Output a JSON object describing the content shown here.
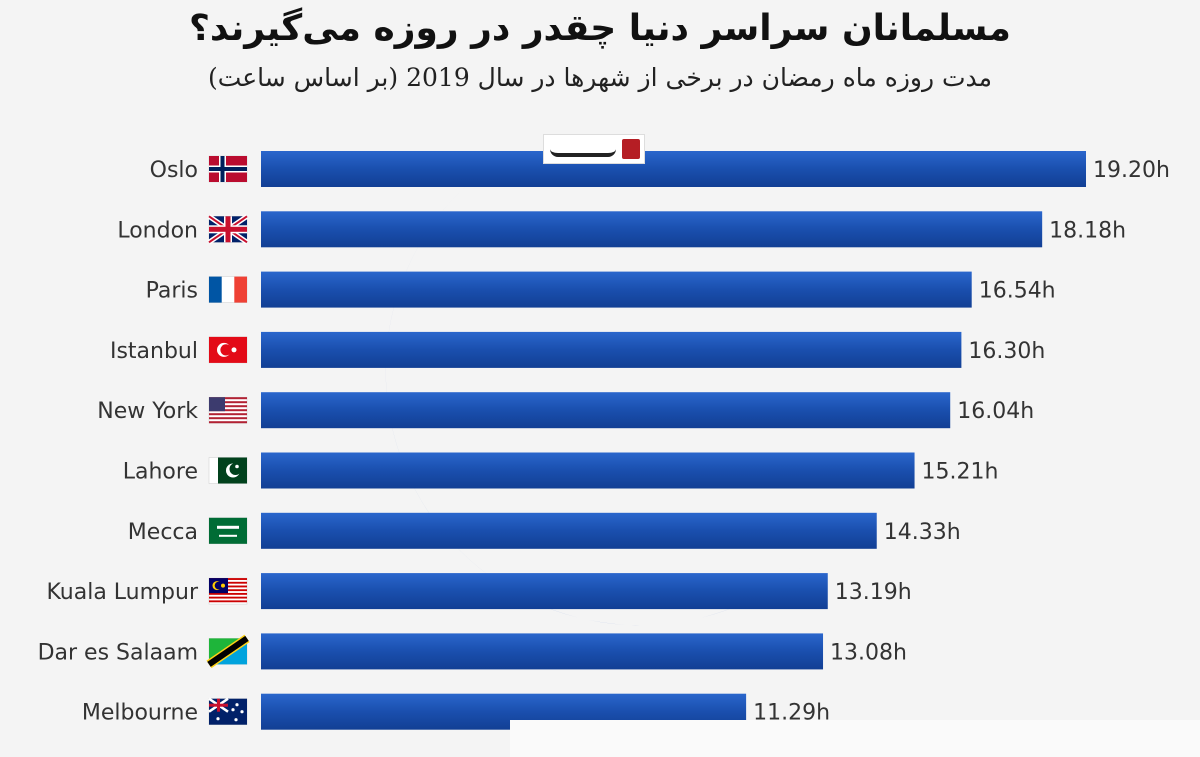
{
  "title": "مسلمانان سراسر دنیا چقدر در روزه می‌گیرند؟",
  "subtitle": "مدت روزه ماه رمضان در برخی از شهرها در سال 2019 (بر اساس ساعت)",
  "colors": {
    "bar": "#1a4fae",
    "bar_highlight": "#3f78dc",
    "moon": "#2e62c6"
  },
  "logo": {
    "icon": "newspaper-logo-icon"
  },
  "chart_data": {
    "type": "bar",
    "orientation": "horizontal",
    "title": "مسلمانان سراسر دنیا چقدر در روزه می‌گیرند؟",
    "subtitle": "مدت روزه ماه رمضان در برخی از شهرها در سال 2019 (بر اساس ساعت)",
    "unit": "h",
    "xlim": [
      0,
      19.2
    ],
    "grid": false,
    "categories": [
      "Oslo",
      "London",
      "Paris",
      "Istanbul",
      "New York",
      "Lahore",
      "Mecca",
      "Kuala Lumpur",
      "Dar es Salaam",
      "Melbourne"
    ],
    "values": [
      19.2,
      18.18,
      16.54,
      16.3,
      16.04,
      15.21,
      14.33,
      13.19,
      13.08,
      11.29
    ],
    "labels": [
      "19.20h",
      "18.18h",
      "16.54h",
      "16.30h",
      "16.04h",
      "15.21h",
      "14.33h",
      "13.19h",
      "13.08h",
      "11.29h"
    ],
    "flags": [
      "norway-flag-icon",
      "uk-flag-icon",
      "france-flag-icon",
      "turkey-flag-icon",
      "usa-flag-icon",
      "pakistan-flag-icon",
      "saudi-flag-icon",
      "malaysia-flag-icon",
      "tanzania-flag-icon",
      "australia-flag-icon"
    ]
  }
}
